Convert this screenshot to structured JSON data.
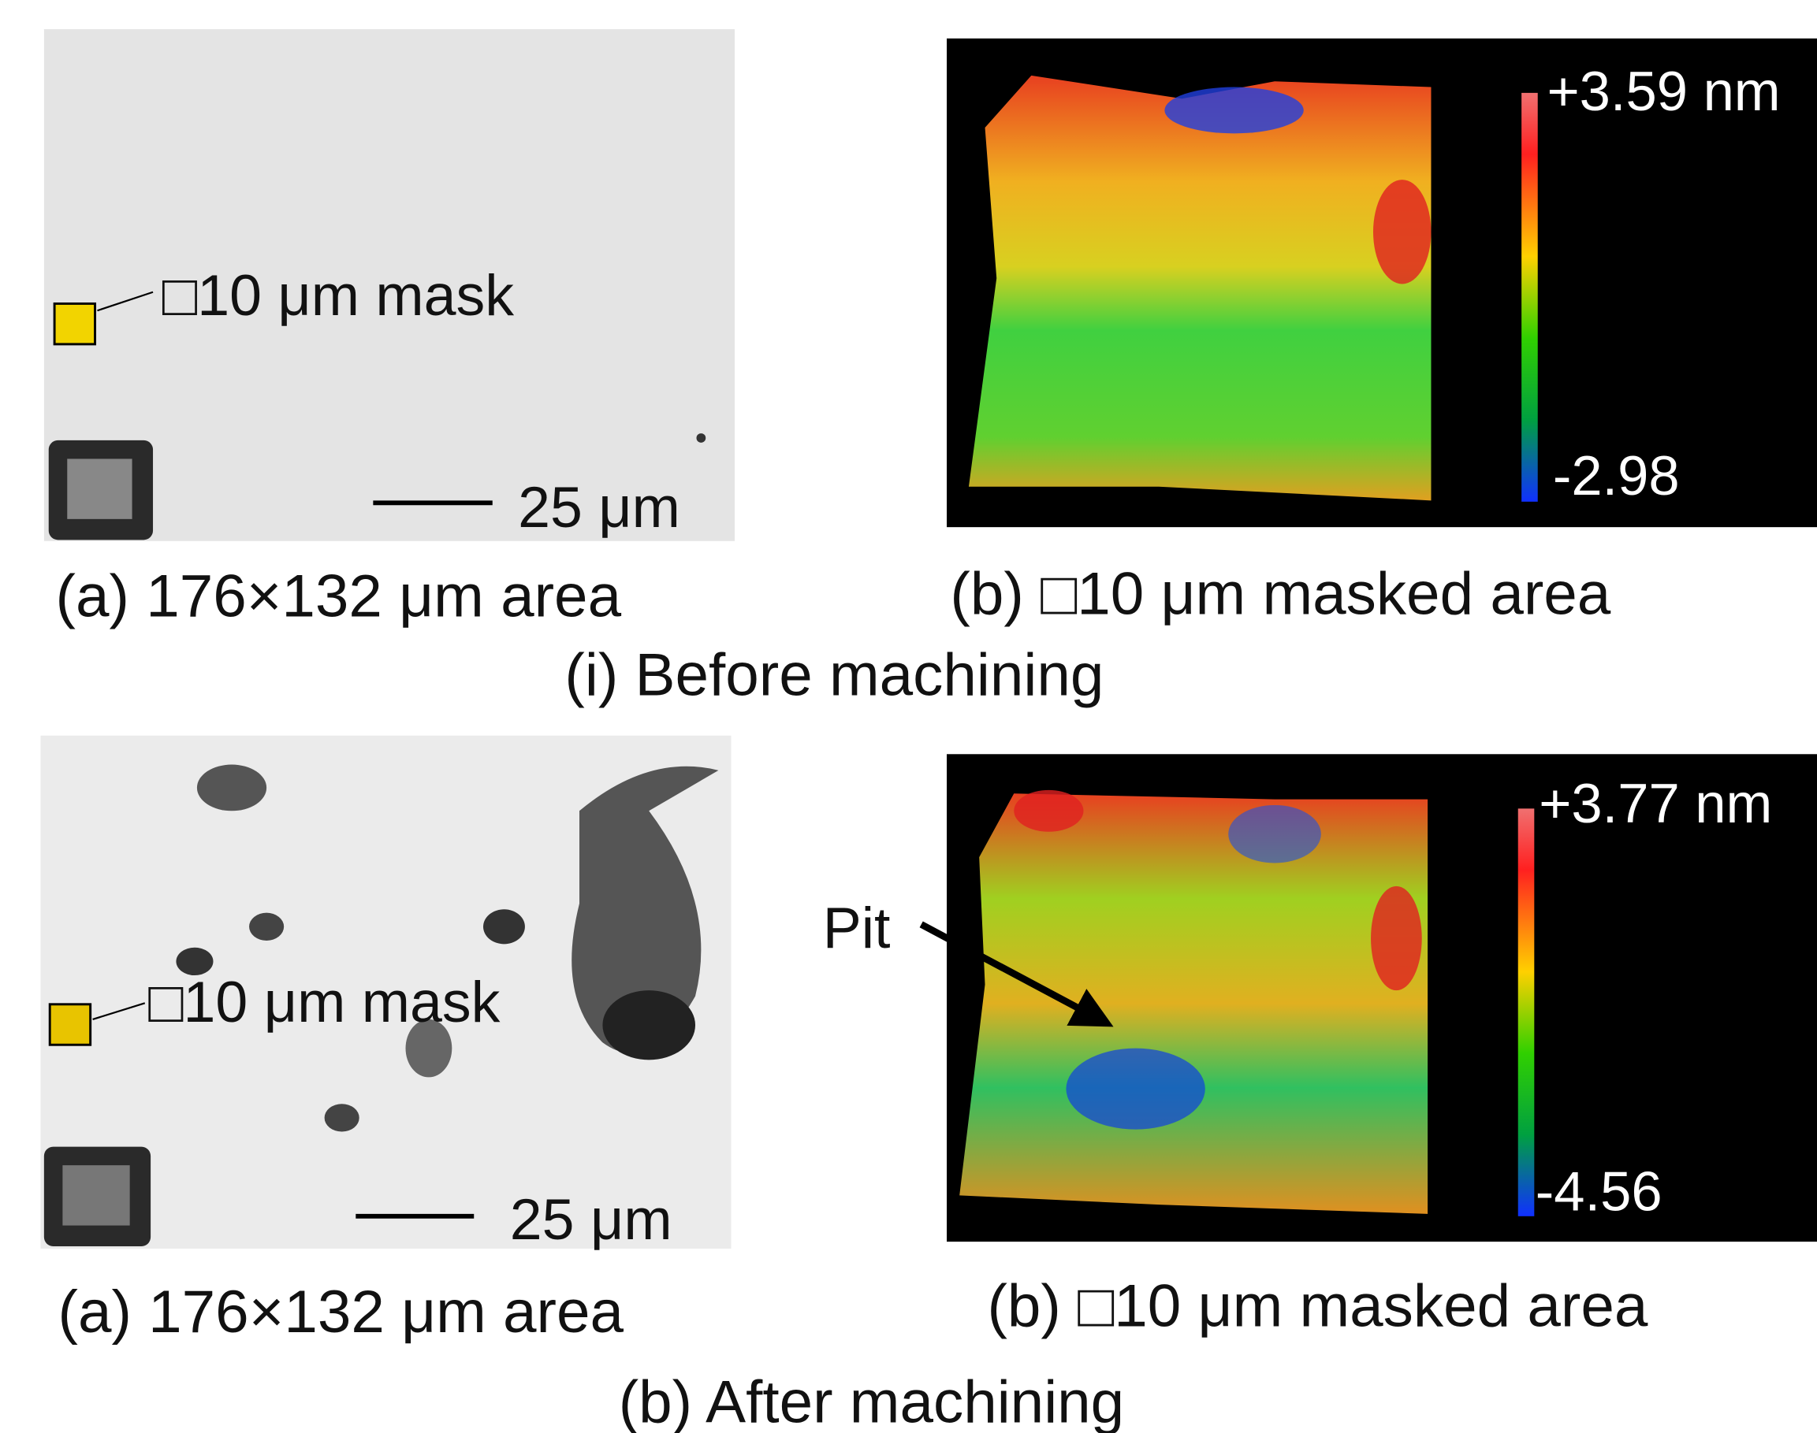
{
  "before": {
    "micrograph": {
      "mask_label": "□10 μm mask",
      "scale_label": "25 μm",
      "caption": "(a) 176×132 μm area"
    },
    "surface": {
      "max_label": "+3.59 nm",
      "min_label": "-2.98",
      "caption": "(b) □10 μm masked area"
    },
    "title": "(i) Before machining"
  },
  "after": {
    "micrograph": {
      "mask_label": "□10 μm mask",
      "scale_label": "25 μm",
      "caption": "(a) 176×132 μm area"
    },
    "surface": {
      "max_label": "+3.77 nm",
      "min_label": "-4.56",
      "annotation": "Pit",
      "caption": "(b) □10 μm masked area"
    },
    "title": "(b) After machining"
  }
}
